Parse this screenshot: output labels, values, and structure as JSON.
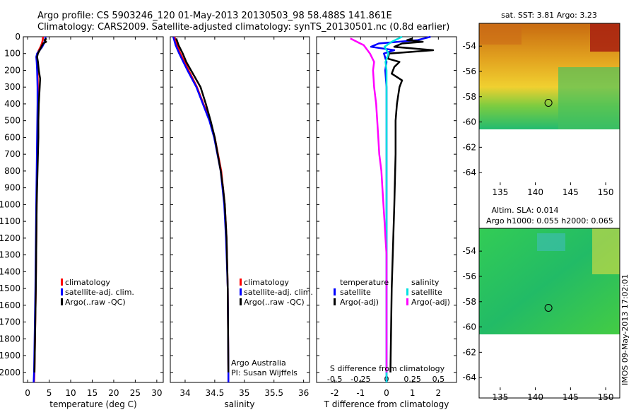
{
  "header": {
    "line1": "Argo profile: CS 5903246_120 01-May-2013 20130503_98 58.488S 141.861E",
    "line2": "Climatology: CARS2009. Satellite-adjusted climatology: synTS_20130501.nc (0.8d earlier)"
  },
  "watermark": "IMOS 09-May-2013 17:02:01",
  "colors": {
    "climatology": "#ff0000",
    "satellite": "#0000ff",
    "argo": "#000000",
    "cyan": "#00e0e0",
    "magenta": "#ff00ff"
  },
  "chart_data": [
    {
      "type": "line",
      "name": "temperature_profile",
      "xlabel": "temperature (deg C)",
      "ylabel": "",
      "xlim": [
        -1,
        31.5
      ],
      "ylim": [
        2060,
        0
      ],
      "xticks": [
        0,
        5,
        10,
        15,
        20,
        25,
        30
      ],
      "yticks": [
        0,
        100,
        200,
        300,
        400,
        500,
        600,
        700,
        800,
        900,
        1000,
        1100,
        1200,
        1300,
        1400,
        1500,
        1600,
        1700,
        1800,
        1900,
        2000
      ],
      "legend": [
        "climatology",
        "satellite-adj. clim.",
        "Argo(..raw -QC)"
      ],
      "legend_placement": "lower-center",
      "series": [
        {
          "name": "climatology",
          "color": "#ff0000",
          "depth": [
            0,
            20,
            40,
            60,
            80,
            100,
            120,
            150,
            200,
            300,
            400,
            600,
            800,
            1000,
            1500,
            2000,
            2060
          ],
          "values": [
            3.6,
            3.5,
            3.3,
            3.0,
            2.6,
            2.3,
            2.2,
            2.2,
            2.3,
            2.4,
            2.4,
            2.3,
            2.2,
            2.1,
            1.9,
            1.6,
            1.5
          ]
        },
        {
          "name": "satellite-adj. clim.",
          "color": "#0000ff",
          "depth": [
            0,
            20,
            40,
            60,
            80,
            100,
            120,
            150,
            200,
            300,
            400,
            600,
            800,
            1000,
            1500,
            2000,
            2060
          ],
          "values": [
            4.2,
            4.0,
            3.8,
            3.4,
            2.8,
            2.2,
            2.0,
            2.1,
            2.2,
            2.3,
            2.3,
            2.2,
            2.1,
            2.0,
            1.8,
            1.5,
            1.4
          ]
        },
        {
          "name": "Argo(..raw -QC)",
          "color": "#000000",
          "depth": [
            10,
            20,
            30,
            40,
            60,
            80,
            100,
            120,
            150,
            200,
            250,
            300,
            400,
            500,
            600,
            800,
            1000,
            1500,
            2000
          ],
          "values": [
            4.4,
            3.9,
            4.3,
            3.6,
            3.2,
            2.8,
            2.4,
            2.2,
            2.4,
            2.6,
            2.9,
            2.8,
            2.6,
            2.5,
            2.5,
            2.3,
            2.1,
            1.9,
            1.6
          ]
        }
      ]
    },
    {
      "type": "line",
      "name": "salinity_profile",
      "xlabel": "salinity",
      "xlim": [
        33.75,
        36.1
      ],
      "ylim": [
        2060,
        0
      ],
      "xticks": [
        34,
        34.5,
        35,
        35.5,
        36
      ],
      "legend": [
        "climatology",
        "satellite-adj. clim.",
        "Argo(..raw -QC)"
      ],
      "legend_placement": "lower-center",
      "annotation": [
        "Argo Australia",
        "PI: Susan Wijffels"
      ],
      "series": [
        {
          "name": "climatology",
          "color": "#ff0000",
          "depth": [
            0,
            50,
            100,
            150,
            200,
            300,
            400,
            500,
            600,
            800,
            1000,
            1200,
            1500,
            2000,
            2060
          ],
          "values": [
            33.82,
            33.86,
            33.92,
            33.99,
            34.06,
            34.2,
            34.31,
            34.42,
            34.5,
            34.61,
            34.67,
            34.7,
            34.72,
            34.73,
            34.73
          ]
        },
        {
          "name": "satellite-adj. clim.",
          "color": "#0000ff",
          "depth": [
            0,
            50,
            100,
            150,
            200,
            300,
            400,
            500,
            600,
            800,
            1000,
            1200,
            1500,
            2000,
            2060
          ],
          "values": [
            33.8,
            33.84,
            33.9,
            33.97,
            34.04,
            34.19,
            34.3,
            34.41,
            34.49,
            34.6,
            34.66,
            34.69,
            34.72,
            34.73,
            34.73
          ]
        },
        {
          "name": "Argo(..raw -QC)",
          "color": "#000000",
          "depth": [
            10,
            50,
            100,
            150,
            200,
            250,
            300,
            400,
            500,
            600,
            700,
            800,
            900,
            1000,
            1200,
            1500,
            2000
          ],
          "values": [
            33.85,
            33.89,
            33.96,
            34.02,
            34.1,
            34.18,
            34.26,
            34.35,
            34.43,
            34.5,
            34.55,
            34.6,
            34.64,
            34.67,
            34.7,
            34.72,
            34.73
          ]
        }
      ]
    },
    {
      "type": "line",
      "name": "difference_profile",
      "xlabel": "T difference from climatology",
      "xlabel_top": "S difference from climatology",
      "xlim": [
        -2.7,
        2.7
      ],
      "ylim": [
        2060,
        0
      ],
      "xticks": [
        -2,
        -1,
        0,
        1,
        2
      ],
      "xticks_salinity": [
        -0.5,
        -0.25,
        0,
        0.25,
        0.5
      ],
      "salinity_tick_labels": [
        "-0.5",
        "-0.25",
        "0",
        "0.25",
        "0.5"
      ],
      "legend_headers": [
        "temperature",
        "salinity"
      ],
      "legend": [
        "satellite",
        "Argo(-adj)",
        "satellite",
        "Argo(-adj)"
      ],
      "legend_placement": "lower-center",
      "series": [
        {
          "name": "temperature satellite",
          "color": "#0000ff",
          "depth": [
            0,
            20,
            40,
            60,
            80,
            100,
            150,
            200,
            300,
            500,
            800,
            1200,
            1600,
            2060
          ],
          "values": [
            1.7,
            1.2,
            -0.3,
            -0.6,
            0.3,
            -0.1,
            0.0,
            -0.05,
            0.0,
            0.0,
            0.0,
            0.0,
            0.0,
            0.0
          ]
        },
        {
          "name": "temperature Argo(-adj)",
          "color": "#000000",
          "depth": [
            10,
            20,
            30,
            40,
            60,
            80,
            100,
            130,
            150,
            180,
            220,
            260,
            300,
            400,
            500,
            700,
            1000,
            1500,
            2000
          ],
          "values": [
            1.0,
            0.8,
            1.4,
            0.6,
            0.3,
            1.8,
            0.1,
            0.05,
            0.5,
            0.3,
            0.2,
            0.6,
            0.5,
            0.4,
            0.35,
            0.35,
            0.3,
            0.2,
            0.15
          ]
        },
        {
          "name": "salinity satellite",
          "color": "#00e0e0",
          "depth": [
            0,
            30,
            60,
            100,
            150,
            200,
            300,
            500,
            800,
            1200,
            1600,
            2060
          ],
          "values": [
            0.15,
            0.05,
            -0.02,
            0.02,
            -0.01,
            0.0,
            0.0,
            0.0,
            0.0,
            0.0,
            0.0,
            0.0
          ]
        },
        {
          "name": "salinity Argo(-adj)",
          "color": "#ff00ff",
          "depth": [
            10,
            50,
            100,
            150,
            200,
            300,
            400,
            500,
            600,
            700,
            800,
            900,
            1000,
            1100,
            1200,
            1300,
            1500,
            2000
          ],
          "values": [
            -0.35,
            -0.22,
            -0.16,
            -0.12,
            -0.13,
            -0.12,
            -0.1,
            -0.09,
            -0.08,
            -0.07,
            -0.05,
            -0.04,
            -0.03,
            -0.02,
            -0.01,
            0.0,
            0.0,
            0.0
          ]
        }
      ]
    },
    {
      "type": "heatmap",
      "name": "sst_map",
      "title": "sat. SST: 3.81  Argo: 3.23",
      "xlim": [
        132,
        152
      ],
      "ylim": [
        -65,
        -52.2
      ],
      "xticks": [
        135,
        140,
        145,
        150
      ],
      "yticks": [
        -54,
        -56,
        -58,
        -60,
        -62,
        -64
      ],
      "data_lat_range": [
        -60,
        -52.2
      ],
      "marker": {
        "lon": 141.861,
        "lat": -58.488
      }
    },
    {
      "type": "heatmap",
      "name": "sla_map",
      "title_lines": [
        "Altim. SLA: 0.014",
        "Argo h1000: 0.055  h2000: 0.065"
      ],
      "xlim": [
        132,
        152
      ],
      "ylim": [
        -65,
        -52.2
      ],
      "xticks": [
        135,
        140,
        145,
        150
      ],
      "yticks": [
        -54,
        -56,
        -58,
        -60,
        -62,
        -64
      ],
      "data_lat_range": [
        -60,
        -52.2
      ],
      "marker": {
        "lon": 141.861,
        "lat": -58.488
      }
    }
  ]
}
